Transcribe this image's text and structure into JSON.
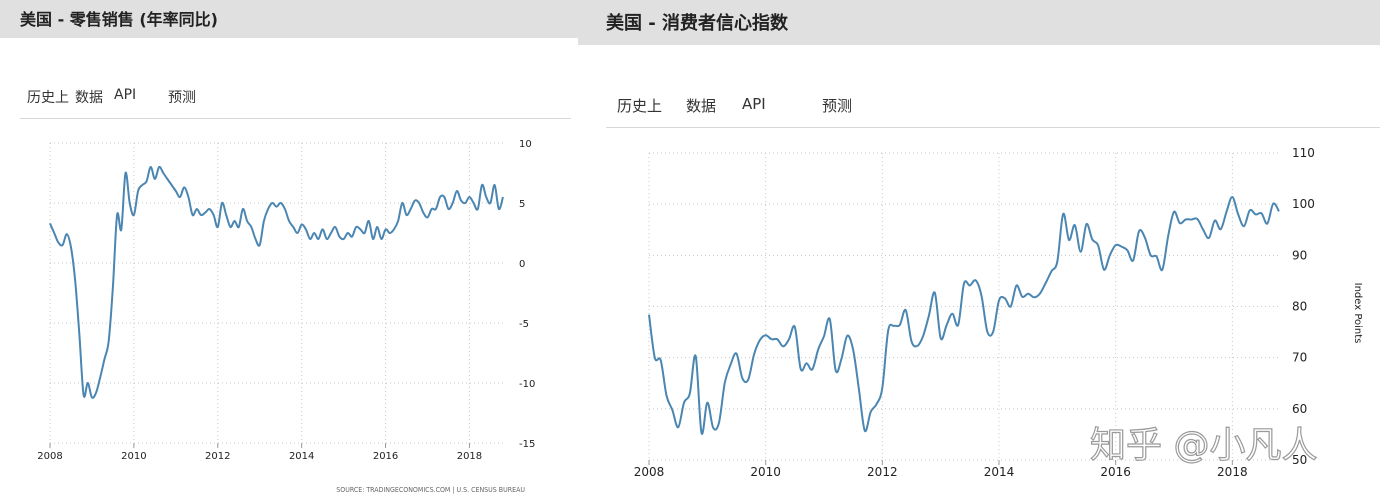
{
  "left": {
    "title": "美国 - 零售销售 (年率同比)",
    "tabs": [
      "历史上",
      "数据",
      "API",
      "预测"
    ],
    "source": "SOURCE: TRADINGECONOMICS.COM | U.S. CENSUS BUREAU"
  },
  "right": {
    "title": "美国 - 消费者信心指数",
    "tabs": [
      "历史上",
      "数据",
      "API",
      "预测"
    ],
    "watermark": "知乎 @小凡人"
  },
  "chart_data": [
    {
      "type": "line",
      "title": "美国 - 零售销售 (年率同比)",
      "xlim": [
        2008,
        2018.8
      ],
      "ylim": [
        -15,
        10
      ],
      "x_ticks": [
        "2008",
        "2010",
        "2012",
        "2014",
        "2016",
        "2018"
      ],
      "y_ticks": [
        "10",
        "5",
        "0",
        "-5",
        "-10",
        "-15"
      ],
      "grid": true,
      "series": [
        {
          "color": "#4a86b1",
          "x": [
            2008.0,
            2008.1,
            2008.2,
            2008.3,
            2008.4,
            2008.5,
            2008.6,
            2008.7,
            2008.8,
            2008.9,
            2009.0,
            2009.1,
            2009.2,
            2009.3,
            2009.4,
            2009.5,
            2009.6,
            2009.7,
            2009.8,
            2009.9,
            2010.0,
            2010.1,
            2010.2,
            2010.3,
            2010.4,
            2010.5,
            2010.6,
            2010.7,
            2010.8,
            2010.9,
            2011.0,
            2011.1,
            2011.2,
            2011.3,
            2011.4,
            2011.5,
            2011.6,
            2011.7,
            2011.8,
            2011.9,
            2012.0,
            2012.1,
            2012.2,
            2012.3,
            2012.4,
            2012.5,
            2012.6,
            2012.7,
            2012.8,
            2012.9,
            2013.0,
            2013.1,
            2013.2,
            2013.3,
            2013.4,
            2013.5,
            2013.6,
            2013.7,
            2013.8,
            2013.9,
            2014.0,
            2014.1,
            2014.2,
            2014.3,
            2014.4,
            2014.5,
            2014.6,
            2014.7,
            2014.8,
            2014.9,
            2015.0,
            2015.1,
            2015.2,
            2015.3,
            2015.4,
            2015.5,
            2015.6,
            2015.7,
            2015.8,
            2015.9,
            2016.0,
            2016.1,
            2016.2,
            2016.3,
            2016.4,
            2016.5,
            2016.6,
            2016.7,
            2016.8,
            2016.9,
            2017.0,
            2017.1,
            2017.2,
            2017.3,
            2017.4,
            2017.5,
            2017.6,
            2017.7,
            2017.8,
            2017.9,
            2018.0,
            2018.1,
            2018.2,
            2018.3,
            2018.4,
            2018.5,
            2018.6,
            2018.7,
            2018.8
          ],
          "values": [
            3.3,
            2.5,
            1.7,
            1.5,
            2.4,
            1.3,
            -1.5,
            -6.0,
            -11.0,
            -10.0,
            -11.2,
            -10.8,
            -9.5,
            -8.0,
            -6.5,
            -2.0,
            4.0,
            2.8,
            7.5,
            5.0,
            4.0,
            6.0,
            6.5,
            6.8,
            8.0,
            7.0,
            8.0,
            7.5,
            7.0,
            6.5,
            6.0,
            5.5,
            6.3,
            5.5,
            4.0,
            4.5,
            4.0,
            4.2,
            4.5,
            4.0,
            3.0,
            5.0,
            4.0,
            3.0,
            3.5,
            3.0,
            4.5,
            3.5,
            3.0,
            2.0,
            1.5,
            3.5,
            4.5,
            5.0,
            4.7,
            5.0,
            4.5,
            3.5,
            3.0,
            2.5,
            3.2,
            2.8,
            2.0,
            2.5,
            2.0,
            2.8,
            2.0,
            2.5,
            3.0,
            2.2,
            2.0,
            2.5,
            2.2,
            3.0,
            2.8,
            2.5,
            3.5,
            2.0,
            3.0,
            2.0,
            2.8,
            2.5,
            2.8,
            3.5,
            5.0,
            4.0,
            4.5,
            5.2,
            5.0,
            4.2,
            3.8,
            4.5,
            4.5,
            5.5,
            5.5,
            4.5,
            5.0,
            6.0,
            5.2,
            5.0,
            5.5,
            5.0,
            4.5,
            6.5,
            5.5,
            5.0,
            6.5,
            4.5,
            5.5
          ]
        }
      ]
    },
    {
      "type": "line",
      "title": "美国 - 消费者信心指数",
      "ylabel": "Index Points",
      "xlim": [
        2008,
        2018.8
      ],
      "ylim": [
        50,
        110
      ],
      "x_ticks": [
        "2008",
        "2010",
        "2012",
        "2014",
        "2016",
        "2018"
      ],
      "y_ticks": [
        "110",
        "100",
        "90",
        "80",
        "70",
        "60",
        "50"
      ],
      "grid": true,
      "series": [
        {
          "color": "#4a86b1",
          "x": [
            2008.0,
            2008.1,
            2008.2,
            2008.3,
            2008.4,
            2008.5,
            2008.6,
            2008.7,
            2008.8,
            2008.9,
            2009.0,
            2009.1,
            2009.2,
            2009.3,
            2009.4,
            2009.5,
            2009.6,
            2009.7,
            2009.8,
            2009.9,
            2010.0,
            2010.1,
            2010.2,
            2010.3,
            2010.4,
            2010.5,
            2010.6,
            2010.7,
            2010.8,
            2010.9,
            2011.0,
            2011.1,
            2011.2,
            2011.3,
            2011.4,
            2011.5,
            2011.6,
            2011.7,
            2011.8,
            2011.9,
            2012.0,
            2012.1,
            2012.2,
            2012.3,
            2012.4,
            2012.5,
            2012.6,
            2012.7,
            2012.8,
            2012.9,
            2013.0,
            2013.1,
            2013.2,
            2013.3,
            2013.4,
            2013.5,
            2013.6,
            2013.7,
            2013.8,
            2013.9,
            2014.0,
            2014.1,
            2014.2,
            2014.3,
            2014.4,
            2014.5,
            2014.6,
            2014.7,
            2014.8,
            2014.9,
            2015.0,
            2015.1,
            2015.2,
            2015.3,
            2015.4,
            2015.5,
            2015.6,
            2015.7,
            2015.8,
            2015.9,
            2016.0,
            2016.1,
            2016.2,
            2016.3,
            2016.4,
            2016.5,
            2016.6,
            2016.7,
            2016.8,
            2016.9,
            2017.0,
            2017.1,
            2017.2,
            2017.3,
            2017.4,
            2017.5,
            2017.6,
            2017.7,
            2017.8,
            2017.9,
            2018.0,
            2018.1,
            2018.2,
            2018.3,
            2018.4,
            2018.5,
            2018.6,
            2018.7,
            2018.8
          ],
          "values": [
            78.4,
            70.0,
            69.5,
            62.6,
            59.8,
            56.4,
            61.2,
            63.0,
            70.3,
            55.3,
            61.2,
            56.3,
            57.3,
            65.1,
            68.7,
            70.8,
            66.0,
            65.7,
            70.6,
            73.4,
            74.4,
            73.6,
            73.6,
            72.2,
            73.6,
            76.0,
            67.8,
            68.9,
            67.7,
            71.6,
            74.2,
            77.5,
            67.5,
            69.8,
            74.3,
            71.5,
            63.7,
            55.7,
            59.4,
            60.9,
            64.1,
            75.3,
            76.2,
            76.4,
            79.3,
            73.2,
            72.3,
            74.3,
            78.3,
            82.7,
            73.8,
            76.3,
            78.6,
            76.4,
            84.5,
            84.1,
            85.1,
            82.1,
            75.1,
            75.1,
            81.2,
            81.6,
            80.0,
            84.1,
            81.9,
            82.5,
            81.8,
            82.5,
            84.6,
            86.9,
            88.8,
            98.1,
            93.0,
            95.9,
            90.7,
            96.1,
            93.1,
            91.9,
            87.2,
            90.0,
            92.0,
            91.7,
            91.0,
            89.0,
            94.7,
            93.5,
            90.0,
            89.8,
            87.2,
            93.8,
            98.5,
            96.3,
            97.0,
            97.0,
            97.1,
            95.0,
            93.4,
            96.8,
            95.1,
            98.5,
            101.4,
            98.0,
            95.7,
            98.8,
            98.0,
            98.2,
            96.2,
            100.1,
            98.6
          ]
        }
      ]
    }
  ]
}
